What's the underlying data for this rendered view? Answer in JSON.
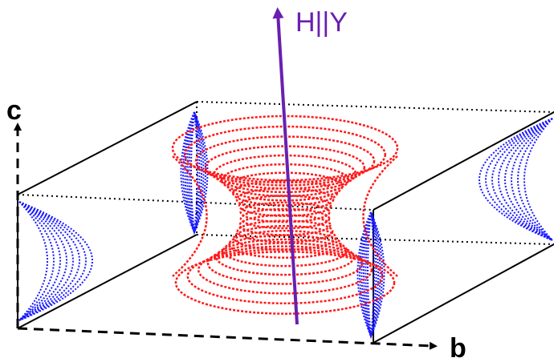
{
  "labels": {
    "field": "H||Y",
    "c_axis": "c",
    "b_axis": "b"
  }
}
